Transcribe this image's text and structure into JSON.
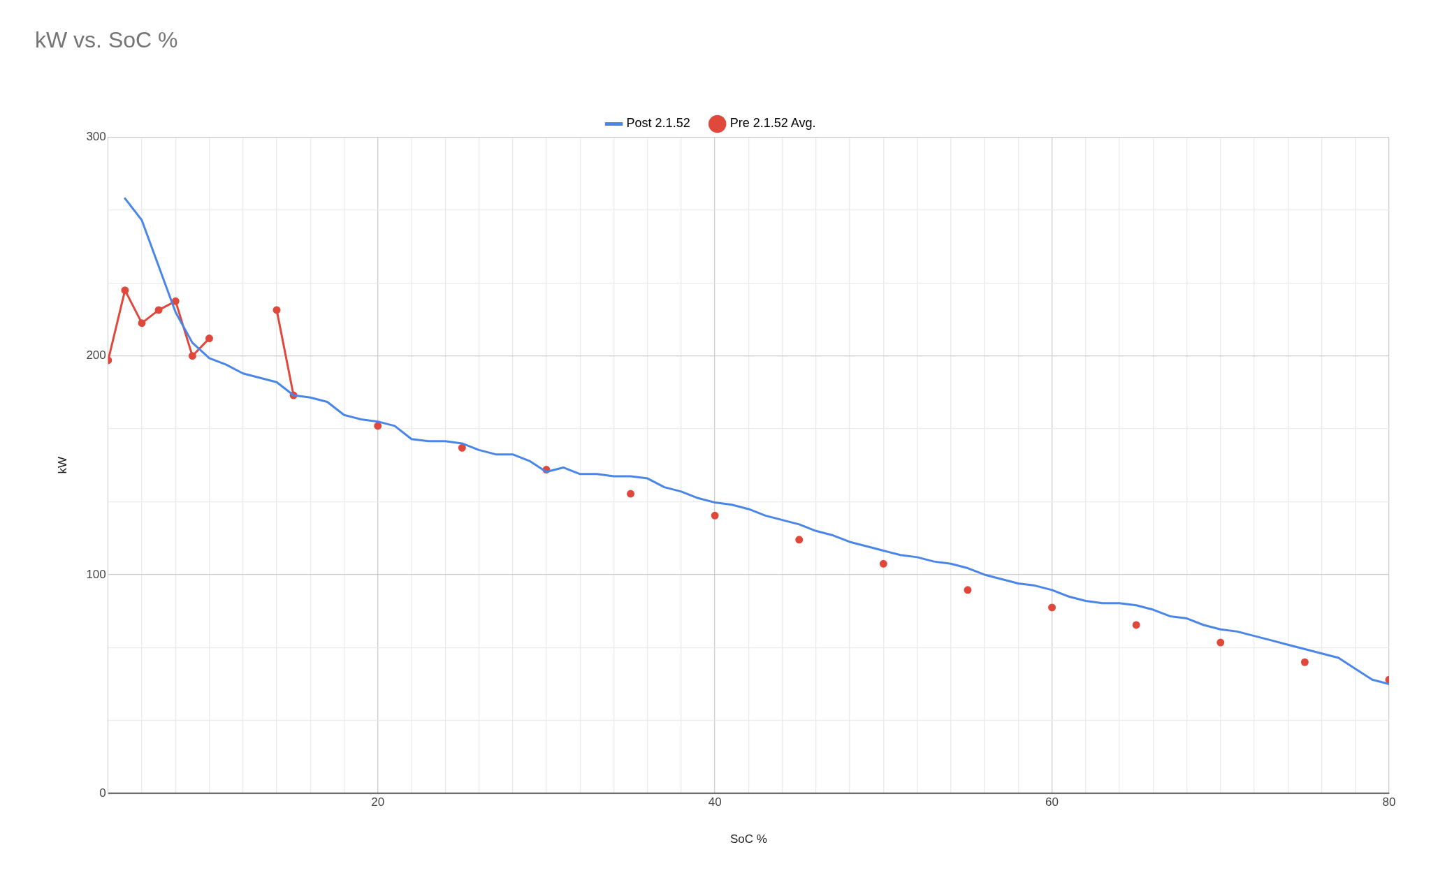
{
  "chart_data": {
    "type": "line",
    "title": "kW vs. SoC %",
    "xlabel": "SoC %",
    "ylabel": "kW",
    "xlim": [
      4,
      80
    ],
    "xticks": [
      {
        "value": 6,
        "label": null
      },
      {
        "value": 8,
        "label": null
      },
      {
        "value": 10,
        "label": null
      },
      {
        "value": 12,
        "label": null
      },
      {
        "value": 14,
        "label": null
      },
      {
        "value": 16,
        "label": null
      },
      {
        "value": 18,
        "label": null
      },
      20,
      {
        "value": 22,
        "label": null
      },
      {
        "value": 24,
        "label": null
      },
      {
        "value": 26,
        "label": null
      },
      {
        "value": 28,
        "label": null
      },
      {
        "value": 30,
        "label": null
      },
      {
        "value": 32,
        "label": null
      },
      {
        "value": 34,
        "label": null
      },
      {
        "value": 36,
        "label": null
      },
      {
        "value": 38,
        "label": null
      },
      40,
      {
        "value": 42,
        "label": null
      },
      {
        "value": 44,
        "label": null
      },
      {
        "value": 46,
        "label": null
      },
      {
        "value": 48,
        "label": null
      },
      {
        "value": 50,
        "label": null
      },
      {
        "value": 52,
        "label": null
      },
      {
        "value": 54,
        "label": null
      },
      {
        "value": 56,
        "label": null
      },
      {
        "value": 58,
        "label": null
      },
      60,
      {
        "value": 62,
        "label": null
      },
      {
        "value": 64,
        "label": null
      },
      {
        "value": 66,
        "label": null
      },
      {
        "value": 68,
        "label": null
      },
      {
        "value": 70,
        "label": null
      },
      {
        "value": 72,
        "label": null
      },
      {
        "value": 74,
        "label": null
      },
      {
        "value": 76,
        "label": null
      },
      {
        "value": 78,
        "label": null
      },
      80
    ],
    "ylim": [
      0,
      300
    ],
    "yticks": [
      0,
      {
        "value": 33.3,
        "label": null
      },
      {
        "value": 66.7,
        "label": null
      },
      100,
      {
        "value": 133.3,
        "label": null
      },
      {
        "value": 166.7,
        "label": null
      },
      200,
      {
        "value": 233.3,
        "label": null
      },
      {
        "value": 266.7,
        "label": null
      },
      300
    ],
    "grid": true,
    "legend": "top",
    "series": [
      {
        "name": "Post 2.1.52",
        "color": "#4a86e8",
        "marker": "none",
        "x": [
          5,
          6,
          7,
          8,
          9,
          10,
          11,
          12,
          13,
          14,
          15,
          16,
          17,
          18,
          19,
          20,
          21,
          22,
          23,
          24,
          25,
          26,
          27,
          28,
          29,
          30,
          31,
          32,
          33,
          34,
          35,
          36,
          37,
          38,
          39,
          40,
          41,
          42,
          43,
          44,
          45,
          46,
          47,
          48,
          49,
          50,
          51,
          52,
          53,
          54,
          55,
          56,
          57,
          58,
          59,
          60,
          61,
          62,
          63,
          64,
          65,
          66,
          67,
          68,
          69,
          70,
          71,
          72,
          73,
          74,
          75,
          76,
          77,
          78,
          79,
          80
        ],
        "values": [
          272,
          262,
          241,
          220,
          206,
          199,
          196,
          192,
          190,
          188,
          182,
          181,
          179,
          173,
          171,
          170,
          168,
          162,
          161,
          161,
          160,
          157,
          155,
          155,
          152,
          147,
          149,
          146,
          146,
          145,
          145,
          144,
          140,
          138,
          135,
          133,
          132,
          130,
          127,
          125,
          123,
          120,
          118,
          115,
          113,
          111,
          109,
          108,
          106,
          105,
          103,
          100,
          98,
          96,
          95,
          93,
          90,
          88,
          87,
          87,
          86,
          84,
          81,
          80,
          77,
          75,
          74,
          72,
          70,
          68,
          66,
          64,
          62,
          57,
          52,
          50
        ]
      },
      {
        "name": "Pre 2.1.52 Avg.",
        "color": "#e0483c",
        "marker": "circle",
        "x": [
          4,
          5,
          6,
          7,
          8,
          9,
          10,
          11,
          12,
          13,
          14,
          15,
          16,
          17,
          18,
          19,
          20,
          21,
          22,
          23,
          24,
          25,
          26,
          27,
          28,
          29,
          30,
          31,
          32,
          33,
          34,
          35,
          36,
          37,
          38,
          39,
          40,
          41,
          42,
          43,
          44,
          45,
          46,
          47,
          48,
          49,
          50,
          51,
          52,
          53,
          54,
          55,
          56,
          57,
          58,
          59,
          60,
          61,
          62,
          63,
          64,
          65,
          66,
          67,
          68,
          69,
          70,
          71,
          72,
          73,
          74,
          75,
          76,
          77,
          78,
          79,
          80
        ],
        "values": [
          198,
          230,
          215,
          221,
          225,
          200,
          208,
          null,
          null,
          null,
          221,
          182,
          null,
          null,
          null,
          null,
          168,
          null,
          null,
          null,
          null,
          158,
          null,
          null,
          null,
          null,
          148,
          null,
          null,
          null,
          null,
          137,
          null,
          null,
          null,
          null,
          127,
          null,
          null,
          null,
          null,
          116,
          null,
          null,
          null,
          null,
          105,
          null,
          null,
          null,
          null,
          93,
          null,
          null,
          null,
          null,
          85,
          null,
          null,
          null,
          null,
          77,
          null,
          null,
          null,
          null,
          69,
          null,
          null,
          null,
          null,
          60,
          null,
          null,
          null,
          null,
          52
        ]
      }
    ]
  }
}
